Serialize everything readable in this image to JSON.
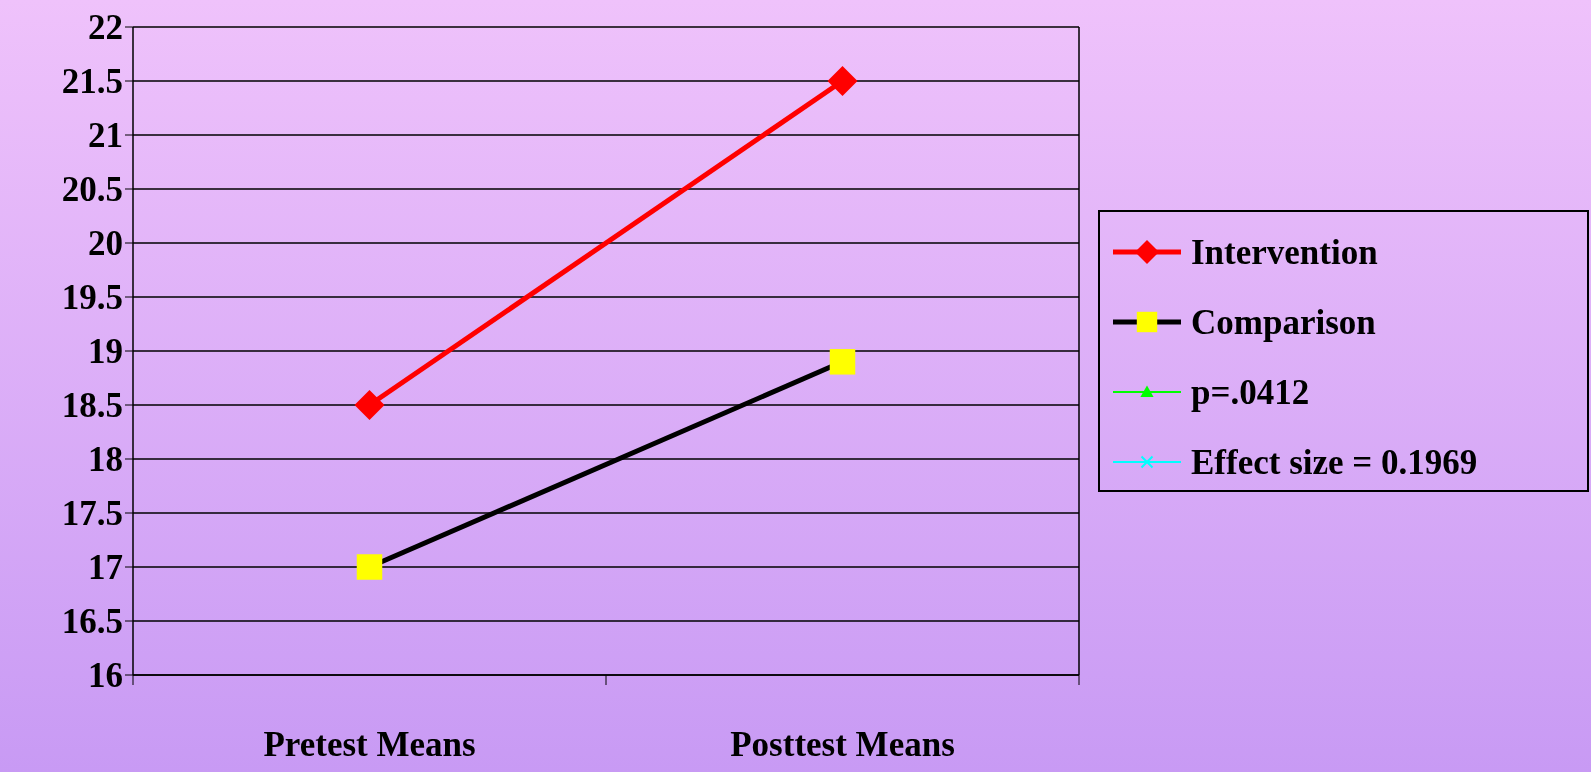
{
  "chart_data": {
    "type": "line",
    "categories": [
      "Pretest Means",
      "Posttest Means"
    ],
    "ylim": [
      16,
      22
    ],
    "yticks": [
      16,
      16.5,
      17,
      17.5,
      18,
      18.5,
      19,
      19.5,
      20,
      20.5,
      21,
      21.5,
      22
    ],
    "grid": "y",
    "legend": "right",
    "series": [
      {
        "name": "Intervention",
        "color": "#ff0000",
        "marker": "diamond",
        "values": [
          18.5,
          21.5
        ]
      },
      {
        "name": "Comparison",
        "color": "#000000",
        "marker": "square",
        "values": [
          17,
          18.9
        ]
      },
      {
        "name": "p=.0412",
        "color": "#00ff00",
        "marker": "triangle",
        "values": [
          null,
          null
        ]
      },
      {
        "name": "Effect size = 0.1969",
        "color": "#00ffff",
        "marker": "cross",
        "values": [
          null,
          null
        ]
      }
    ]
  }
}
